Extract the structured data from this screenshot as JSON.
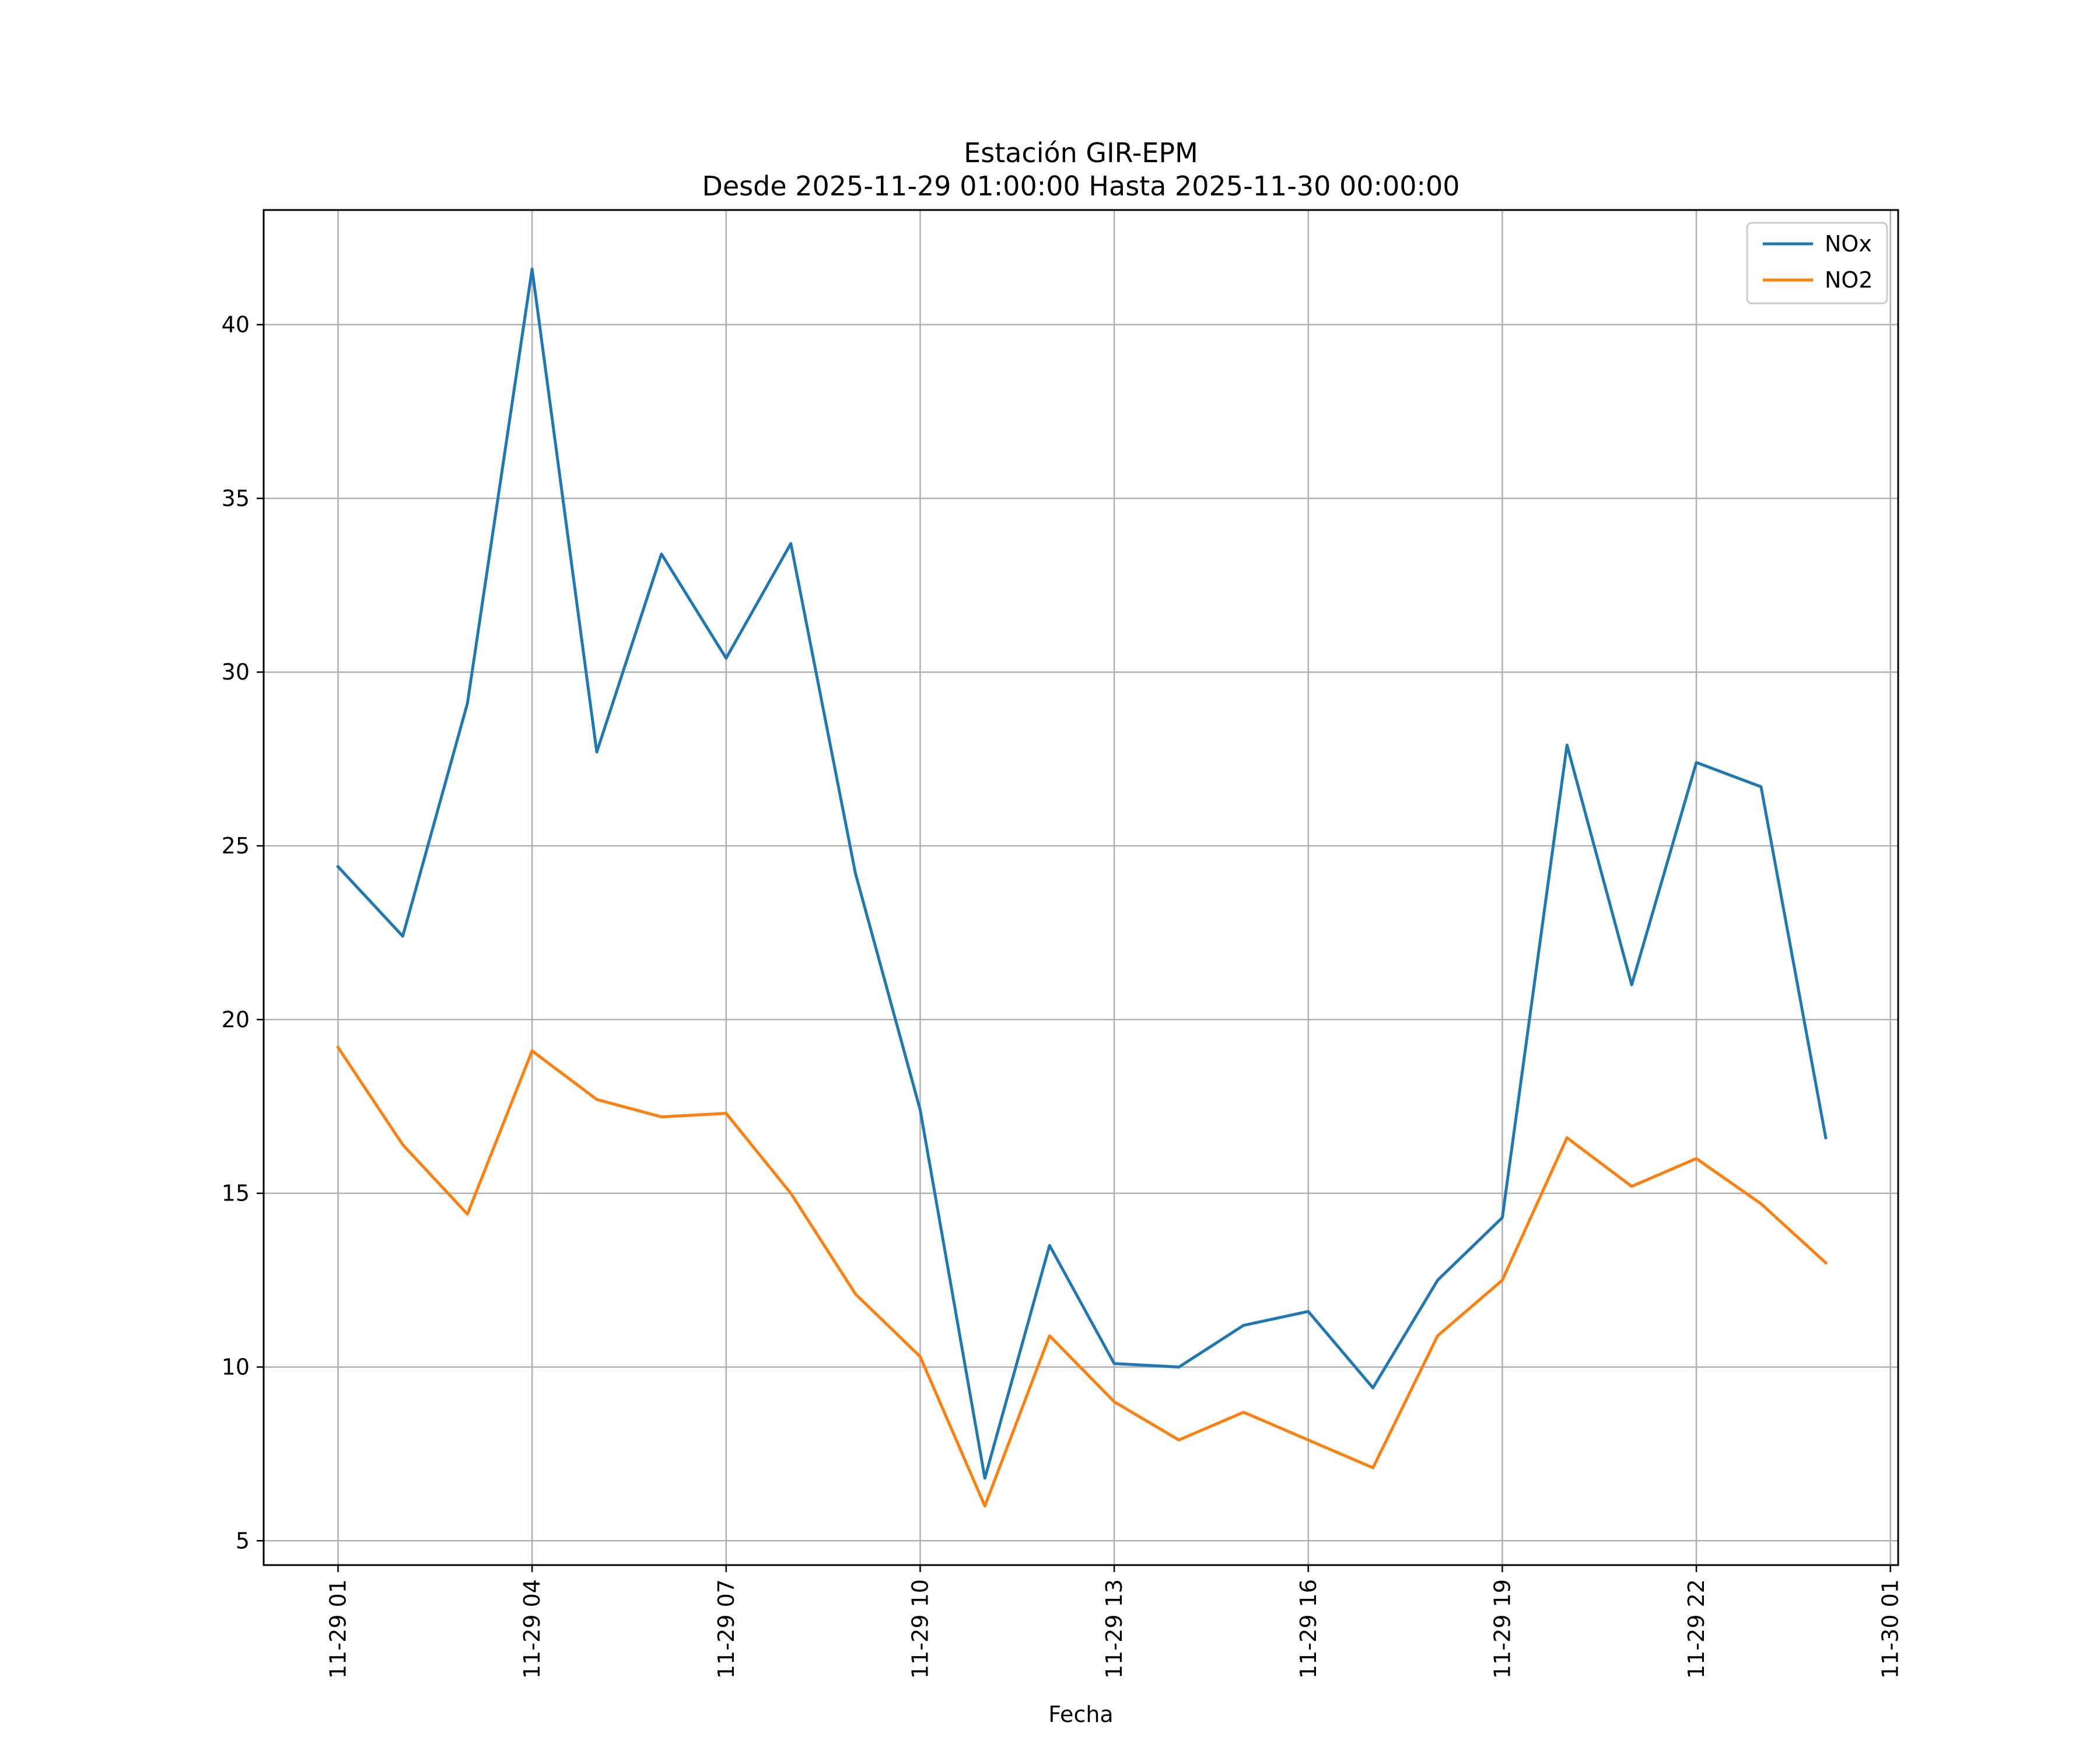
{
  "chart_data": {
    "type": "line",
    "title": "Estación GIR-EPM",
    "subtitle": "Desde 2025-11-29 01:00:00 Hasta 2025-11-30 00:00:00",
    "xlabel": "Fecha",
    "ylabel": "",
    "x_hours": [
      1,
      2,
      3,
      4,
      5,
      6,
      7,
      8,
      9,
      10,
      11,
      12,
      13,
      14,
      15,
      16,
      17,
      18,
      19,
      20,
      21,
      22,
      23,
      24
    ],
    "xlim": [
      -0.15,
      25.12
    ],
    "ylim": [
      4.3,
      43.3
    ],
    "x_ticks": [
      {
        "label": "11-29 01",
        "hour": 1
      },
      {
        "label": "11-29 04",
        "hour": 4
      },
      {
        "label": "11-29 07",
        "hour": 7
      },
      {
        "label": "11-29 10",
        "hour": 10
      },
      {
        "label": "11-29 13",
        "hour": 13
      },
      {
        "label": "11-29 16",
        "hour": 16
      },
      {
        "label": "11-29 19",
        "hour": 19
      },
      {
        "label": "11-29 22",
        "hour": 22
      },
      {
        "label": "11-30 01",
        "hour": 25
      }
    ],
    "y_ticks": [
      5,
      10,
      15,
      20,
      25,
      30,
      35,
      40
    ],
    "grid": true,
    "legend_position": "top-right",
    "series": [
      {
        "name": "NOx",
        "color": "#1f77b4",
        "values": [
          24.4,
          22.4,
          29.1,
          41.6,
          27.7,
          33.4,
          30.4,
          33.7,
          24.2,
          17.4,
          6.8,
          13.5,
          10.1,
          10.0,
          11.2,
          11.6,
          9.4,
          12.5,
          14.3,
          27.9,
          21.0,
          27.4,
          26.7,
          16.6
        ]
      },
      {
        "name": "NO2",
        "color": "#ff7f0e",
        "values": [
          19.2,
          16.4,
          14.4,
          19.1,
          17.7,
          17.2,
          17.3,
          15.0,
          12.1,
          10.3,
          6.0,
          10.9,
          9.0,
          7.9,
          8.7,
          7.9,
          7.1,
          10.9,
          12.5,
          16.6,
          15.2,
          16.0,
          14.7,
          13.0
        ]
      }
    ]
  }
}
